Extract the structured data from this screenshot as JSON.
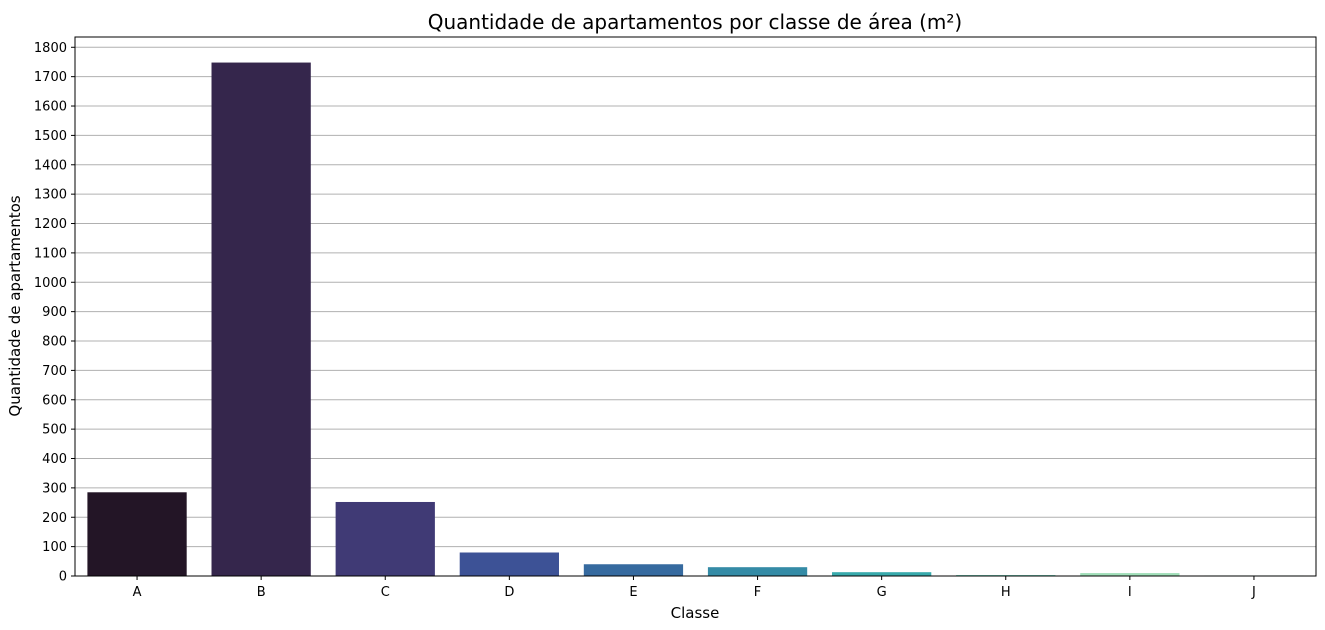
{
  "chart_data": {
    "type": "bar",
    "title": "Quantidade de apartamentos por classe de área (m²)",
    "xlabel": "Classe",
    "ylabel": "Quantidade de apartamentos",
    "categories": [
      "A",
      "B",
      "C",
      "D",
      "E",
      "F",
      "G",
      "H",
      "I",
      "J"
    ],
    "values": [
      285,
      1748,
      252,
      80,
      40,
      30,
      13,
      3,
      10,
      2
    ],
    "ylim": [
      0,
      1835
    ],
    "yticks": [
      0,
      100,
      200,
      300,
      400,
      500,
      600,
      700,
      800,
      900,
      1000,
      1100,
      1200,
      1300,
      1400,
      1500,
      1600,
      1700,
      1800
    ],
    "grid": "y",
    "colors": [
      "#231526",
      "#35264c",
      "#403a75",
      "#3d5296",
      "#366a9f",
      "#348ba6",
      "#38aaac",
      "#55caad",
      "#a1dfb9",
      "#def5e5"
    ]
  }
}
